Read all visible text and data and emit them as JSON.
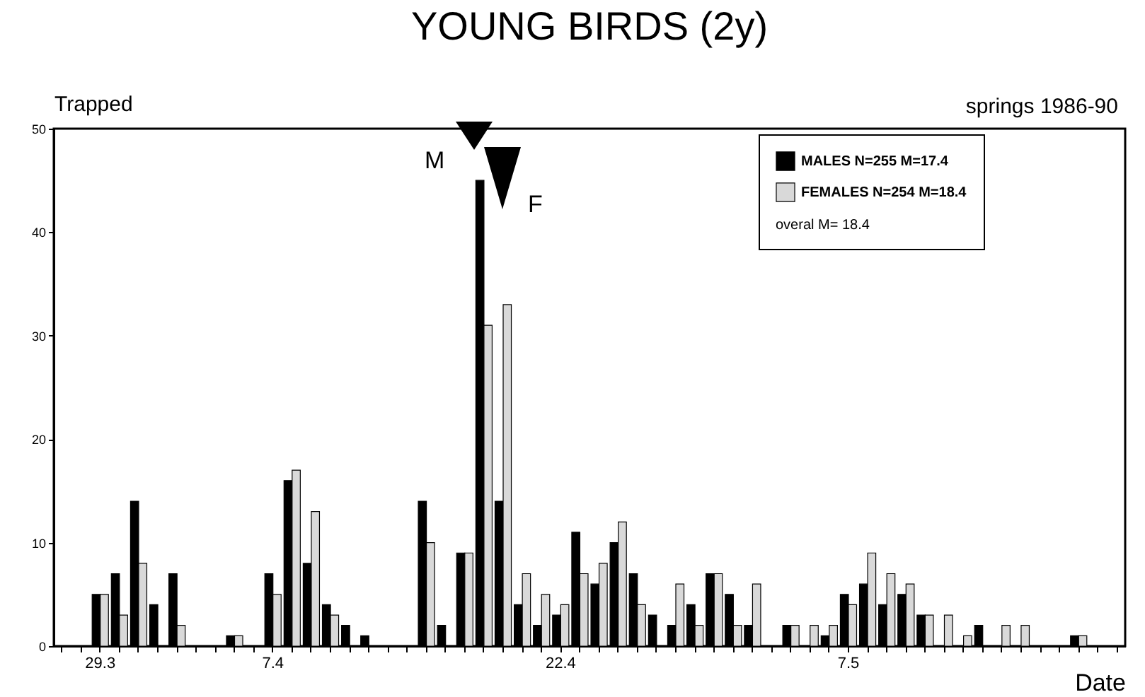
{
  "chart_data": {
    "type": "bar",
    "title": "YOUNG BIRDS (2y)",
    "xlabel": "Date",
    "ylabel": "Trapped",
    "annotations": [
      "springs 1986-90",
      "overal M= 18.4",
      "M",
      "F"
    ],
    "categories": [
      null,
      null,
      "29.3",
      null,
      null,
      null,
      null,
      null,
      null,
      null,
      null,
      "7.4",
      null,
      null,
      null,
      null,
      null,
      null,
      null,
      null,
      null,
      null,
      null,
      null,
      null,
      null,
      "22.4",
      null,
      null,
      null,
      null,
      null,
      null,
      null,
      null,
      null,
      null,
      null,
      null,
      null,
      null,
      "7.5",
      null,
      null,
      null,
      null,
      null,
      null,
      null,
      null,
      null,
      null,
      null,
      null,
      null,
      null
    ],
    "series": [
      {
        "name": "MALES N=255 M=17.4",
        "color": "#000000",
        "values": [
          0,
          0,
          5,
          7,
          14,
          4,
          7,
          0,
          0,
          1,
          0,
          7,
          16,
          8,
          4,
          2,
          1,
          0,
          0,
          14,
          2,
          9,
          45,
          14,
          4,
          2,
          3,
          11,
          6,
          10,
          7,
          3,
          2,
          4,
          7,
          5,
          2,
          0,
          2,
          0,
          1,
          5,
          6,
          4,
          5,
          3,
          0,
          0,
          2,
          0,
          0,
          0,
          0,
          1,
          0,
          0
        ]
      },
      {
        "name": "FEMALES N=254 M=18.4",
        "color": "#d9d9d9",
        "values": [
          0,
          0,
          5,
          3,
          8,
          0,
          2,
          0,
          0,
          1,
          0,
          5,
          17,
          13,
          3,
          0,
          0,
          0,
          0,
          10,
          0,
          9,
          31,
          33,
          7,
          5,
          4,
          7,
          8,
          12,
          4,
          0,
          6,
          2,
          7,
          2,
          6,
          0,
          2,
          2,
          2,
          4,
          9,
          7,
          6,
          3,
          3,
          1,
          0,
          2,
          2,
          0,
          0,
          1,
          0,
          0
        ]
      }
    ],
    "ylim": [
      0,
      50
    ],
    "yticks": [
      0,
      10,
      20,
      30,
      40,
      50
    ],
    "grid": false,
    "legend": "top right"
  }
}
